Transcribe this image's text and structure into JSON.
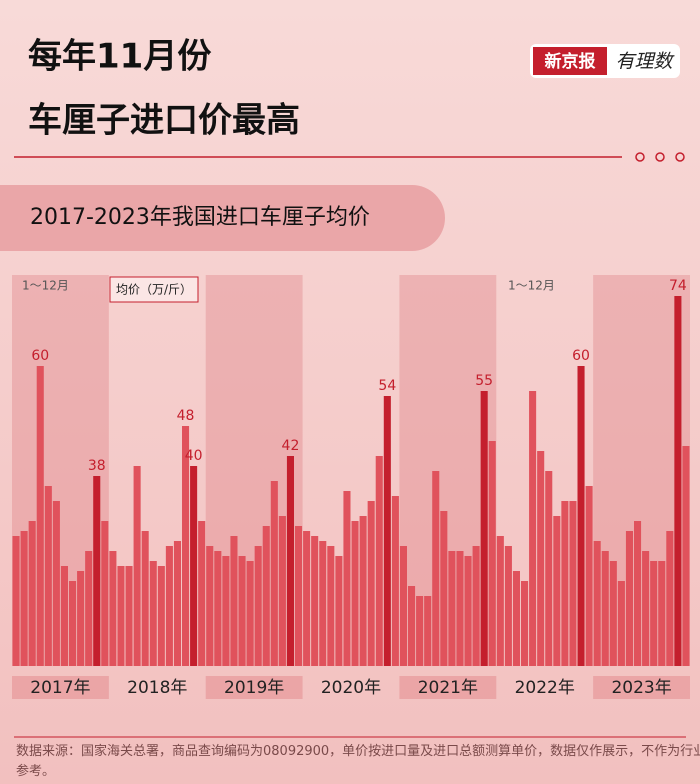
{
  "header": {
    "title_lines": [
      "每年11月份",
      "车厘子进口价最高"
    ],
    "logo_left": "新京报",
    "logo_right": "有理数"
  },
  "chart_data": {
    "type": "bar",
    "title": "2017-2023年我国进口车厘子均价",
    "unit_label": "均价（万/斤）",
    "annotations": [
      "1～12月",
      "1～12月"
    ],
    "ylim": [
      0,
      80
    ],
    "series": [
      {
        "name": "2017年",
        "values": [
          26,
          27,
          29,
          60,
          36,
          33,
          20,
          17,
          19,
          23,
          38,
          29
        ],
        "value_labels": [
          null,
          null,
          null,
          "60",
          null,
          null,
          null,
          null,
          null,
          null,
          "38",
          null
        ],
        "colors": [
          "#e0525c",
          "#e0525c",
          "#e0525c",
          "#e0525c",
          "#e0525c",
          "#e0525c",
          "#e0525c",
          "#e0525c",
          "#e0525c",
          "#e0525c",
          "#c41f2d",
          "#e0525c"
        ]
      },
      {
        "name": "2018年",
        "values": [
          23,
          20,
          20,
          40,
          27,
          21,
          20,
          24,
          25,
          48,
          40,
          29
        ],
        "value_labels": [
          null,
          null,
          null,
          null,
          null,
          null,
          null,
          null,
          null,
          "48",
          "40",
          null
        ],
        "colors": [
          "#e0525c",
          "#e0525c",
          "#e0525c",
          "#e0525c",
          "#e0525c",
          "#e0525c",
          "#e0525c",
          "#e0525c",
          "#e0525c",
          "#e0525c",
          "#c41f2d",
          "#e0525c"
        ]
      },
      {
        "name": "2019年",
        "values": [
          24,
          23,
          22,
          26,
          22,
          21,
          24,
          28,
          37,
          30,
          42,
          28
        ],
        "value_labels": [
          null,
          null,
          null,
          null,
          null,
          null,
          null,
          null,
          null,
          null,
          "42",
          null
        ],
        "colors": [
          "#e0525c",
          "#e0525c",
          "#e0525c",
          "#e0525c",
          "#e0525c",
          "#e0525c",
          "#e0525c",
          "#e0525c",
          "#e0525c",
          "#e0525c",
          "#c41f2d",
          "#e0525c"
        ]
      },
      {
        "name": "2020年",
        "values": [
          27,
          26,
          25,
          24,
          22,
          35,
          29,
          30,
          33,
          42,
          54,
          34
        ],
        "value_labels": [
          null,
          null,
          null,
          null,
          null,
          null,
          null,
          null,
          null,
          null,
          "54",
          null
        ],
        "colors": [
          "#e0525c",
          "#e0525c",
          "#e0525c",
          "#e0525c",
          "#e0525c",
          "#e0525c",
          "#e0525c",
          "#e0525c",
          "#e0525c",
          "#e0525c",
          "#c41f2d",
          "#e0525c"
        ]
      },
      {
        "name": "2021年",
        "values": [
          24,
          16,
          14,
          14,
          39,
          31,
          23,
          23,
          22,
          24,
          55,
          45
        ],
        "value_labels": [
          null,
          null,
          null,
          null,
          null,
          null,
          null,
          null,
          null,
          null,
          "55",
          null
        ],
        "colors": [
          "#e0525c",
          "#e0525c",
          "#e0525c",
          "#e0525c",
          "#e0525c",
          "#e0525c",
          "#e0525c",
          "#e0525c",
          "#e0525c",
          "#e0525c",
          "#c41f2d",
          "#e0525c"
        ]
      },
      {
        "name": "2022年",
        "values": [
          26,
          24,
          19,
          17,
          55,
          43,
          39,
          30,
          33,
          33,
          60,
          36
        ],
        "value_labels": [
          null,
          null,
          null,
          null,
          null,
          null,
          null,
          null,
          null,
          null,
          "60",
          null
        ],
        "colors": [
          "#e0525c",
          "#e0525c",
          "#e0525c",
          "#e0525c",
          "#e0525c",
          "#e0525c",
          "#e0525c",
          "#e0525c",
          "#e0525c",
          "#e0525c",
          "#c41f2d",
          "#e0525c"
        ]
      },
      {
        "name": "2023年",
        "values": [
          25,
          23,
          21,
          17,
          27,
          29,
          23,
          21,
          21,
          27,
          74,
          44
        ],
        "value_labels": [
          null,
          null,
          null,
          null,
          null,
          null,
          null,
          null,
          null,
          null,
          "74",
          null
        ],
        "colors": [
          "#e0525c",
          "#e0525c",
          "#e0525c",
          "#e0525c",
          "#e0525c",
          "#e0525c",
          "#e0525c",
          "#e0525c",
          "#e0525c",
          "#e0525c",
          "#c41f2d",
          "#e0525c"
        ]
      }
    ]
  },
  "footer": {
    "source": "数据来源：国家海关总署，商品查询编码为08092900，单价按进口量及进口总额测算单价，数据仅作展示，不作为行业参考。"
  }
}
